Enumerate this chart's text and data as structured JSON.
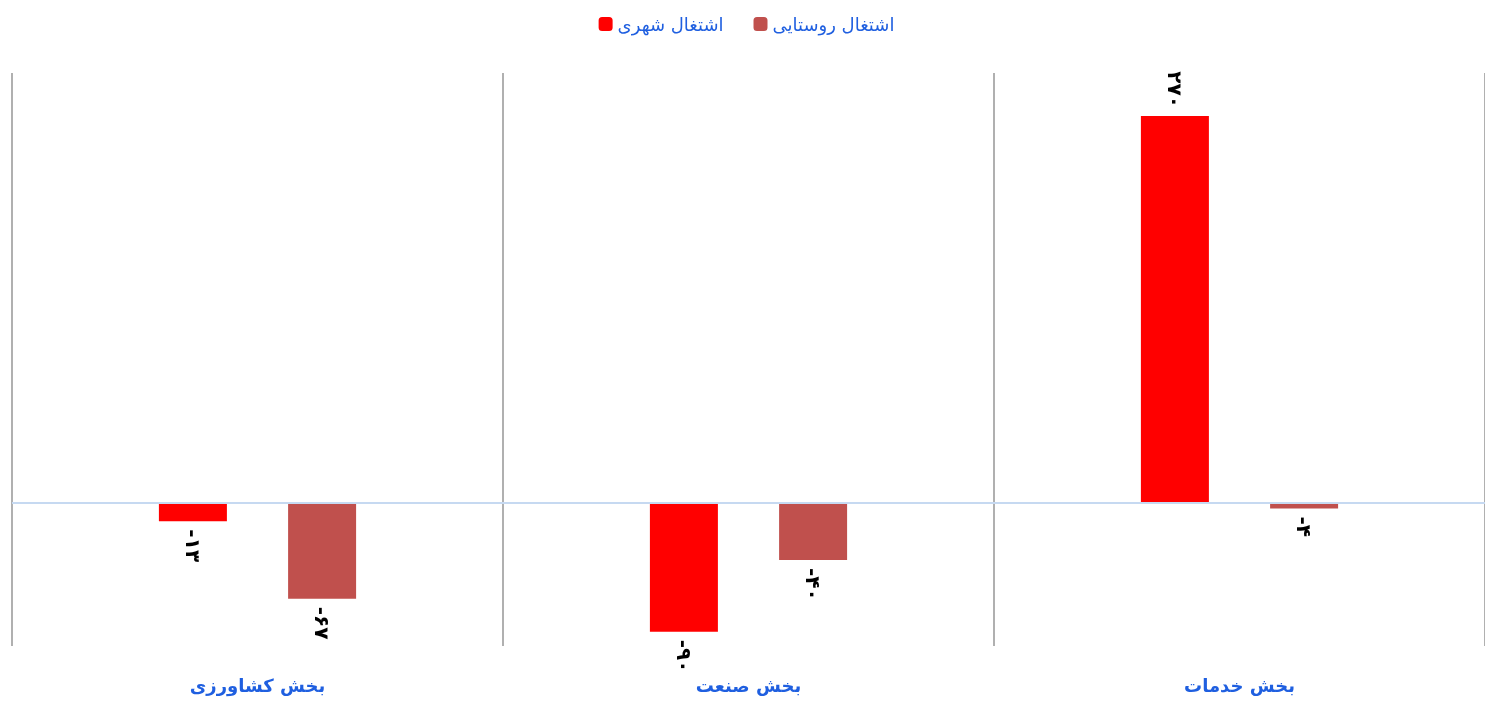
{
  "chart_data": {
    "type": "bar",
    "categories": [
      "بخش کشاورزی",
      "بخش صنعت",
      "بخش خدمات"
    ],
    "series": [
      {
        "name": "اشتغال شهری",
        "color": "#ff0000",
        "values": [
          -13,
          -90,
          270
        ],
        "value_labels": [
          "-۱۳",
          "-۹۰",
          "۲۷۰"
        ]
      },
      {
        "name": "اشتغال روستایی",
        "color": "#c0504d",
        "values": [
          -67,
          -40,
          -4
        ],
        "value_labels": [
          "-۶۷",
          "-۴۰",
          "-۴"
        ]
      }
    ],
    "ref_lines": [
      {
        "axis": "y",
        "value": 0,
        "color": "#c6d9f1"
      }
    ],
    "legend": "top",
    "grid": "x"
  }
}
